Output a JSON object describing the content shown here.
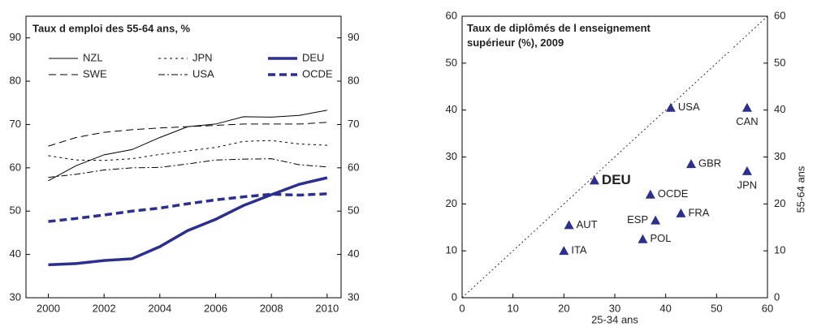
{
  "chart_data": [
    {
      "type": "line",
      "title": "Taux d emploi des 55-64 ans, %",
      "x": [
        2000,
        2001,
        2002,
        2003,
        2004,
        2005,
        2006,
        2007,
        2008,
        2009,
        2010
      ],
      "xlim": [
        1999.2,
        2010.5
      ],
      "xticks": [
        2000,
        2002,
        2004,
        2006,
        2008,
        2010
      ],
      "ylim": [
        30,
        95
      ],
      "yticks": [
        30,
        40,
        50,
        60,
        70,
        80,
        90
      ],
      "y2lim": [
        30,
        95
      ],
      "y2ticks": [
        30,
        40,
        50,
        60,
        70,
        80,
        90
      ],
      "series": [
        {
          "name": "NZL",
          "color": "#000000",
          "values": [
            57,
            60.5,
            63,
            64.2,
            67,
            69.5,
            70.1,
            71.8,
            71.7,
            72.1,
            73.3
          ]
        },
        {
          "name": "SWE",
          "color": "#000000",
          "values": [
            65,
            67,
            68.2,
            68.8,
            69.2,
            69.5,
            69.8,
            70.1,
            70.1,
            70.1,
            70.5
          ]
        },
        {
          "name": "JPN",
          "color": "#000000",
          "values": [
            62.8,
            61.8,
            61.7,
            62.1,
            63.1,
            63.9,
            64.7,
            66.1,
            66.3,
            65.5,
            65.2
          ]
        },
        {
          "name": "USA",
          "color": "#000000",
          "values": [
            57.8,
            58.5,
            59.5,
            60,
            60.1,
            60.9,
            61.8,
            62,
            62.1,
            60.7,
            60.2
          ]
        },
        {
          "name": "DEU",
          "color": "#2b2f8e",
          "values": [
            37.6,
            37.9,
            38.6,
            39,
            41.8,
            45.5,
            48.1,
            51.3,
            53.8,
            56.2,
            57.7
          ]
        },
        {
          "name": "OCDE",
          "color": "#2b2f8e",
          "values": [
            47.6,
            48.3,
            49.1,
            50,
            50.7,
            51.7,
            52.6,
            53.3,
            53.9,
            53.7,
            54
          ]
        }
      ]
    },
    {
      "type": "scatter",
      "title": "Taux de diplômés de l enseignement supérieur (%), 2009",
      "x_label": "25-34 ans",
      "y2_label": "55-64 ans",
      "color": "#2b2f8e",
      "labels": [
        "USA",
        "CAN",
        "GBR",
        "JPN",
        "DEU",
        "OCDE",
        "FRA",
        "ESP",
        "AUT",
        "POL",
        "ITA"
      ],
      "x": [
        41,
        56,
        45,
        56,
        26,
        37,
        43,
        38,
        21,
        35.5,
        20
      ],
      "values": [
        40.5,
        40.5,
        28.5,
        27,
        25,
        22,
        18,
        16.5,
        15.5,
        12.5,
        10
      ],
      "xlim": [
        0,
        60
      ],
      "xticks": [
        0,
        10,
        20,
        30,
        40,
        50,
        60
      ],
      "ylim": [
        0,
        60
      ],
      "yticks": [
        0,
        10,
        20,
        30,
        40,
        50,
        60
      ],
      "y2lim": [
        0,
        60
      ],
      "y2ticks": [
        0,
        10,
        20,
        30,
        40,
        50,
        60
      ]
    }
  ]
}
